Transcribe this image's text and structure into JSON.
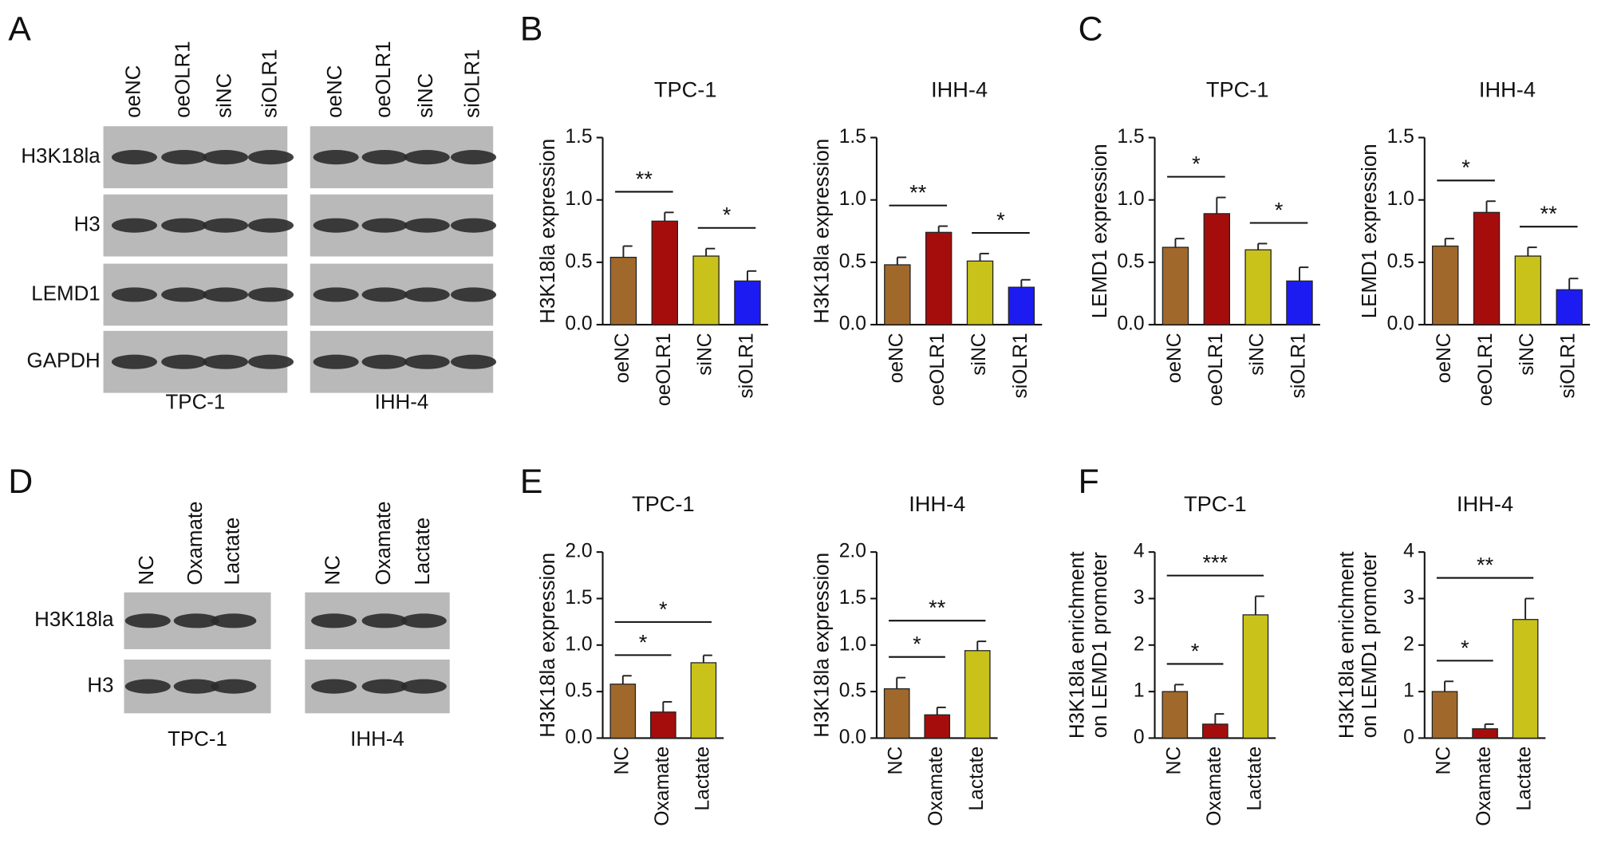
{
  "panel_labels": [
    "A",
    "B",
    "C",
    "D",
    "E",
    "F"
  ],
  "blot_a": {
    "lanes": [
      "oeNC",
      "oeOLR1",
      "siNC",
      "siOLR1"
    ],
    "proteins": [
      "H3K18la",
      "H3",
      "LEMD1",
      "GAPDH"
    ],
    "cell_lines": [
      "TPC-1",
      "IHH-4"
    ]
  },
  "blot_d": {
    "lanes": [
      "NC",
      "Oxamate",
      "Lactate"
    ],
    "proteins": [
      "H3K18la",
      "H3"
    ],
    "cell_lines": [
      "TPC-1",
      "IHH-4"
    ]
  },
  "chart_data": [
    {
      "type": "bar",
      "title": "TPC-1",
      "y_label": "H3K18la expression",
      "categories": [
        "oeNC",
        "oeOLR1",
        "siNC",
        "siOLR1"
      ],
      "values": [
        0.54,
        0.83,
        0.55,
        0.35
      ],
      "errors": [
        0.09,
        0.07,
        0.06,
        0.08
      ],
      "colors": [
        "#a0692b",
        "#a50d0d",
        "#c9c21b",
        "#1c1cf2"
      ],
      "ylim": [
        0,
        1.5
      ],
      "yticks": [
        {
          "value": 0,
          "label": "0.0"
        },
        {
          "value": 0.5,
          "label": "0.5"
        },
        {
          "value": 1,
          "label": "1.0"
        },
        1.5
      ],
      "significance": [
        {
          "from": "oeNC",
          "to": "oeOLR1",
          "label": "**"
        },
        {
          "from": "siNC",
          "to": "siOLR1",
          "label": "*"
        }
      ]
    },
    {
      "type": "bar",
      "title": "IHH-4",
      "y_label": "H3K18la expression",
      "categories": [
        "oeNC",
        "oeOLR1",
        "siNC",
        "siOLR1"
      ],
      "values": [
        0.48,
        0.74,
        0.51,
        0.3
      ],
      "errors": [
        0.06,
        0.05,
        0.06,
        0.06
      ],
      "colors": [
        "#a0692b",
        "#a50d0d",
        "#c9c21b",
        "#1c1cf2"
      ],
      "ylim": [
        0,
        1.5
      ],
      "yticks": [
        {
          "value": 0,
          "label": "0.0"
        },
        {
          "value": 0.5,
          "label": "0.5"
        },
        {
          "value": 1,
          "label": "1.0"
        },
        1.5
      ],
      "significance": [
        {
          "from": "oeNC",
          "to": "oeOLR1",
          "label": "**"
        },
        {
          "from": "siNC",
          "to": "siOLR1",
          "label": "*"
        }
      ]
    },
    {
      "type": "bar",
      "title": "TPC-1",
      "y_label": "LEMD1 expression",
      "categories": [
        "oeNC",
        "oeOLR1",
        "siNC",
        "siOLR1"
      ],
      "values": [
        0.62,
        0.89,
        0.6,
        0.35
      ],
      "errors": [
        0.07,
        0.13,
        0.05,
        0.11
      ],
      "colors": [
        "#a0692b",
        "#a50d0d",
        "#c9c21b",
        "#1c1cf2"
      ],
      "ylim": [
        0,
        1.5
      ],
      "yticks": [
        {
          "value": 0,
          "label": "0.0"
        },
        {
          "value": 0.5,
          "label": "0.5"
        },
        {
          "value": 1,
          "label": "1.0"
        },
        1.5
      ],
      "significance": [
        {
          "from": "oeNC",
          "to": "oeOLR1",
          "label": "*"
        },
        {
          "from": "siNC",
          "to": "siOLR1",
          "label": "*"
        }
      ]
    },
    {
      "type": "bar",
      "title": "IHH-4",
      "y_label": "LEMD1 expression",
      "categories": [
        "oeNC",
        "oeOLR1",
        "siNC",
        "siOLR1"
      ],
      "values": [
        0.63,
        0.9,
        0.55,
        0.28
      ],
      "errors": [
        0.06,
        0.09,
        0.07,
        0.09
      ],
      "colors": [
        "#a0692b",
        "#a50d0d",
        "#c9c21b",
        "#1c1cf2"
      ],
      "ylim": [
        0,
        1.5
      ],
      "yticks": [
        {
          "value": 0,
          "label": "0.0"
        },
        {
          "value": 0.5,
          "label": "0.5"
        },
        {
          "value": 1,
          "label": "1.0"
        },
        1.5
      ],
      "significance": [
        {
          "from": "oeNC",
          "to": "oeOLR1",
          "label": "*"
        },
        {
          "from": "siNC",
          "to": "siOLR1",
          "label": "**"
        }
      ]
    },
    {
      "type": "bar",
      "title": "TPC-1",
      "y_label": "H3K18la expression",
      "categories": [
        "NC",
        "Oxamate",
        "Lactate"
      ],
      "values": [
        0.58,
        0.28,
        0.81
      ],
      "errors": [
        0.09,
        0.11,
        0.08
      ],
      "colors": [
        "#a0692b",
        "#a50d0d",
        "#c9c21b"
      ],
      "ylim": [
        0,
        2
      ],
      "yticks": [
        {
          "value": 0,
          "label": "0.0"
        },
        {
          "value": 0.5,
          "label": "0.5"
        },
        {
          "value": 1,
          "label": "1.0"
        },
        1.5,
        {
          "value": 2,
          "label": "2.0"
        }
      ],
      "significance": [
        {
          "from": "NC",
          "to": "Oxamate",
          "label": "*"
        },
        {
          "from": "NC",
          "to": "Lactate",
          "label": "*"
        }
      ]
    },
    {
      "type": "bar",
      "title": "IHH-4",
      "y_label": "H3K18la expression",
      "categories": [
        "NC",
        "Oxamate",
        "Lactate"
      ],
      "values": [
        0.53,
        0.25,
        0.94
      ],
      "errors": [
        0.12,
        0.08,
        0.1
      ],
      "colors": [
        "#a0692b",
        "#a50d0d",
        "#c9c21b"
      ],
      "ylim": [
        0,
        2
      ],
      "yticks": [
        {
          "value": 0,
          "label": "0.0"
        },
        {
          "value": 0.5,
          "label": "0.5"
        },
        {
          "value": 1,
          "label": "1.0"
        },
        1.5,
        {
          "value": 2,
          "label": "2.0"
        }
      ],
      "significance": [
        {
          "from": "NC",
          "to": "Oxamate",
          "label": "*"
        },
        {
          "from": "NC",
          "to": "Lactate",
          "label": "**"
        }
      ]
    },
    {
      "type": "bar",
      "title": "TPC-1",
      "y_label": [
        "H3K18la enrichment",
        "on LEMD1 promoter"
      ],
      "categories": [
        "NC",
        "Oxamate",
        "Lactate"
      ],
      "values": [
        1,
        0.3,
        2.65
      ],
      "errors": [
        0.15,
        0.22,
        0.4
      ],
      "colors": [
        "#a0692b",
        "#a50d0d",
        "#c9c21b"
      ],
      "ylim": [
        0,
        4
      ],
      "yticks": [
        0,
        1,
        2,
        3,
        4
      ],
      "significance": [
        {
          "from": "NC",
          "to": "Oxamate",
          "label": "*"
        },
        {
          "from": "NC",
          "to": "Lactate",
          "label": "***"
        }
      ]
    },
    {
      "type": "bar",
      "title": "IHH-4",
      "y_label": [
        "H3K18la enrichment",
        "on LEMD1 promoter"
      ],
      "categories": [
        "NC",
        "Oxamate",
        "Lactate"
      ],
      "values": [
        1,
        0.2,
        2.55
      ],
      "errors": [
        0.22,
        0.1,
        0.45
      ],
      "colors": [
        "#a0692b",
        "#a50d0d",
        "#c9c21b"
      ],
      "ylim": [
        0,
        4
      ],
      "yticks": [
        0,
        1,
        2,
        3,
        4
      ],
      "significance": [
        {
          "from": "NC",
          "to": "Oxamate",
          "label": "*"
        },
        {
          "from": "NC",
          "to": "Lactate",
          "label": "**"
        }
      ]
    }
  ]
}
